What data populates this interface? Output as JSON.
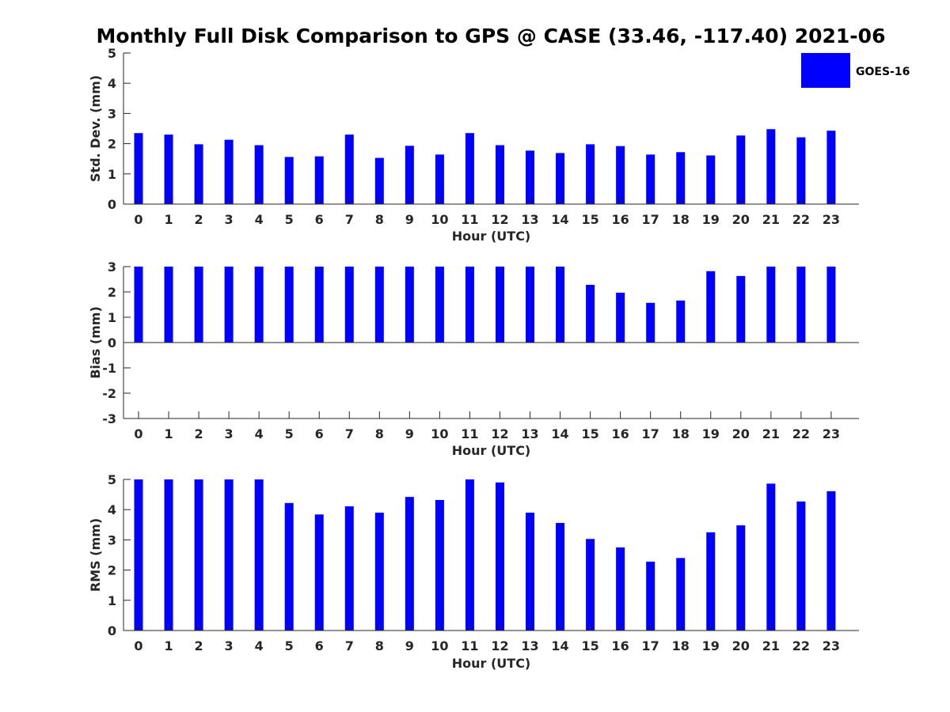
{
  "title": "Monthly Full Disk Comparison to GPS @ CASE (33.46, -117.40) 2021-06",
  "legend": {
    "label": "GOES-16",
    "color": "#0000ff",
    "placement": "top-right"
  },
  "chart_data": [
    {
      "type": "bar",
      "xlabel": "Hour (UTC)",
      "ylabel": "Std. Dev. (mm)",
      "ylim": [
        0,
        5
      ],
      "yticks": [
        0,
        1,
        2,
        3,
        4,
        5
      ],
      "categories": [
        "0",
        "1",
        "2",
        "3",
        "4",
        "5",
        "6",
        "7",
        "8",
        "9",
        "10",
        "11",
        "12",
        "13",
        "14",
        "15",
        "16",
        "17",
        "18",
        "19",
        "20",
        "21",
        "22",
        "23"
      ],
      "series": [
        {
          "name": "GOES-16",
          "values": [
            2.35,
            2.3,
            1.98,
            2.13,
            1.95,
            1.56,
            1.58,
            2.3,
            1.53,
            1.93,
            1.64,
            2.35,
            1.95,
            1.77,
            1.69,
            1.98,
            1.92,
            1.64,
            1.72,
            1.61,
            2.27,
            2.48,
            2.21,
            2.43
          ]
        }
      ],
      "grid": false
    },
    {
      "type": "bar",
      "xlabel": "Hour (UTC)",
      "ylabel": "Bias (mm)",
      "ylim": [
        -3,
        3
      ],
      "yticks": [
        -3,
        -2,
        -1,
        0,
        1,
        2,
        3
      ],
      "categories": [
        "0",
        "1",
        "2",
        "3",
        "4",
        "5",
        "6",
        "7",
        "8",
        "9",
        "10",
        "11",
        "12",
        "13",
        "14",
        "15",
        "16",
        "17",
        "18",
        "19",
        "20",
        "21",
        "22",
        "23"
      ],
      "series": [
        {
          "name": "GOES-16",
          "values": [
            3,
            3,
            3,
            3,
            3,
            3,
            3,
            3,
            3,
            3,
            3,
            3,
            3,
            3,
            3,
            2.28,
            1.97,
            1.57,
            1.66,
            2.82,
            2.63,
            3,
            3,
            3
          ]
        }
      ],
      "grid": false
    },
    {
      "type": "bar",
      "xlabel": "Hour (UTC)",
      "ylabel": "RMS (mm)",
      "ylim": [
        0,
        5
      ],
      "yticks": [
        0,
        1,
        2,
        3,
        4,
        5
      ],
      "categories": [
        "0",
        "1",
        "2",
        "3",
        "4",
        "5",
        "6",
        "7",
        "8",
        "9",
        "10",
        "11",
        "12",
        "13",
        "14",
        "15",
        "16",
        "17",
        "18",
        "19",
        "20",
        "21",
        "22",
        "23"
      ],
      "series": [
        {
          "name": "GOES-16",
          "values": [
            5,
            5,
            5,
            5,
            5,
            4.22,
            3.84,
            4.11,
            3.9,
            4.42,
            4.32,
            5,
            4.9,
            3.9,
            3.56,
            3.03,
            2.75,
            2.28,
            2.4,
            3.25,
            3.48,
            4.86,
            4.27,
            4.61
          ]
        }
      ],
      "grid": false
    }
  ]
}
